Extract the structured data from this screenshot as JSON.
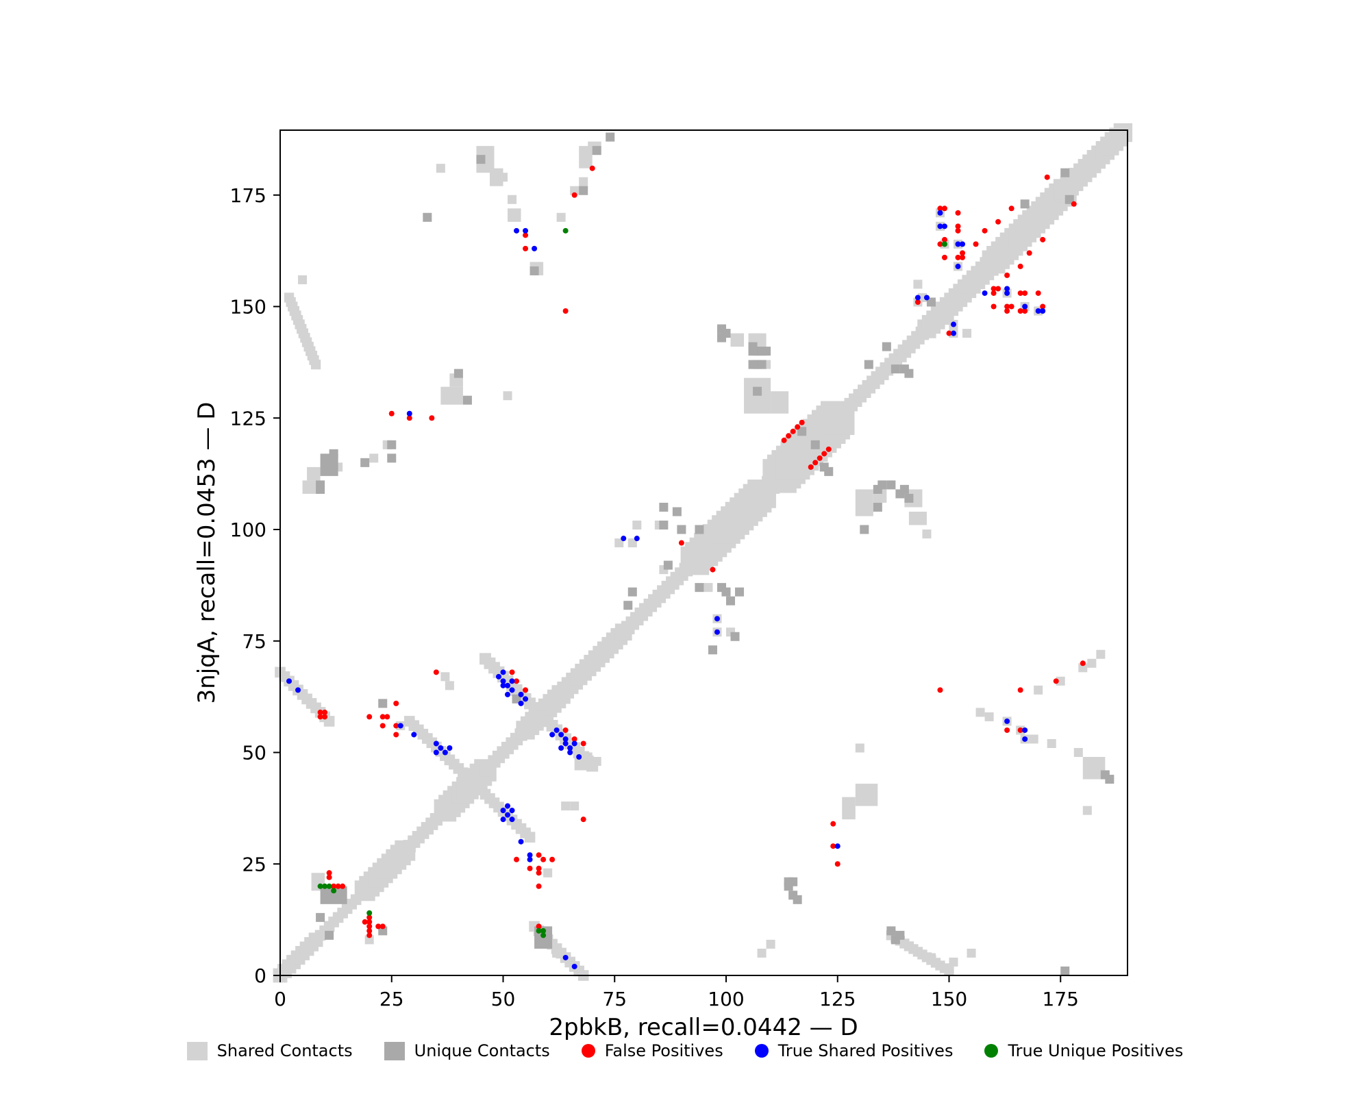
{
  "figure": {
    "xlabel": "2pbkB, recall=0.0442 — D",
    "ylabel": "3njqA, recall=0.0453 — D"
  },
  "legend": [
    {
      "label": "Shared Contacts",
      "marker": "square",
      "color": "#d3d3d3"
    },
    {
      "label": "Unique Contacts",
      "marker": "square",
      "color": "#a9a9a9"
    },
    {
      "label": "False Positives",
      "marker": "circle",
      "color": "#ff0000"
    },
    {
      "label": "True Shared Positives",
      "marker": "circle",
      "color": "#0000ff"
    },
    {
      "label": "True Unique Positives",
      "marker": "circle",
      "color": "#008000"
    }
  ],
  "chart_data": {
    "type": "heatmap",
    "title": "",
    "xlabel": "2pbkB, recall=0.0442 — D",
    "ylabel": "3njqA, recall=0.0453 — D",
    "xlim": [
      0,
      190
    ],
    "ylim": [
      0,
      189.5
    ],
    "x_ticks": [
      0,
      25,
      50,
      75,
      100,
      125,
      150,
      175
    ],
    "y_ticks": [
      0,
      25,
      50,
      75,
      100,
      125,
      150,
      175
    ],
    "grid": false,
    "legend_position": "below",
    "colors": {
      "shared": "#d3d3d3",
      "unique": "#a9a9a9",
      "false_positive": "#ff0000",
      "true_shared_positive": "#0000ff",
      "true_unique_positive": "#008000",
      "axis": "#000000",
      "background": "#ffffff"
    },
    "diagonal_segments": [
      {
        "from": 0,
        "to": 8,
        "hw": 1.6
      },
      {
        "from": 8,
        "to": 19,
        "hw": 1.2
      },
      {
        "from": 19,
        "to": 28,
        "hw": 2.3
      },
      {
        "from": 28,
        "to": 37,
        "hw": 1.4
      },
      {
        "from": 37,
        "to": 46,
        "hw": 2.5
      },
      {
        "from": 46,
        "to": 55,
        "hw": 1.4
      },
      {
        "from": 55,
        "to": 63,
        "hw": 2.1
      },
      {
        "from": 63,
        "to": 77,
        "hw": 1.9
      },
      {
        "from": 77,
        "to": 93,
        "hw": 1.5
      },
      {
        "from": 93,
        "to": 108,
        "hw": 3.2
      },
      {
        "from": 108,
        "to": 112,
        "hw": 2.0
      },
      {
        "from": 112,
        "to": 125,
        "hw": 3.8
      },
      {
        "from": 125,
        "to": 145,
        "hw": 1.5
      },
      {
        "from": 145,
        "to": 160,
        "hw": 2.1
      },
      {
        "from": 160,
        "to": 176,
        "hw": 2.6
      },
      {
        "from": 176,
        "to": 189,
        "hw": 2.1
      }
    ],
    "anti_diagonal_arcs": [
      {
        "from": [
          29,
          57
        ],
        "to": [
          56,
          31
        ],
        "hw": 1.2
      },
      {
        "from": [
          46,
          71
        ],
        "to": [
          70,
          47
        ],
        "hw": 1.3
      },
      {
        "from": [
          57,
          11
        ],
        "to": [
          68,
          0
        ],
        "hw": 1.2
      },
      {
        "from": [
          0,
          68
        ],
        "to": [
          11,
          57
        ],
        "hw": 1.2
      },
      {
        "from": [
          2,
          152
        ],
        "to": [
          8,
          137
        ],
        "hw": 1.1
      },
      {
        "from": [
          137,
          9
        ],
        "to": [
          150,
          1
        ],
        "hw": 1.1
      }
    ],
    "shared_blobs": [
      [
        44,
        180,
        4,
        6
      ],
      [
        47,
        177,
        3,
        4
      ],
      [
        49,
        178,
        2,
        2
      ],
      [
        51,
        173,
        2,
        2
      ],
      [
        51,
        169,
        3,
        3
      ],
      [
        56,
        157,
        3,
        3
      ],
      [
        67,
        181,
        3,
        5
      ],
      [
        69,
        184,
        3,
        3
      ],
      [
        67,
        176,
        2,
        3
      ],
      [
        36,
        128,
        5,
        4
      ],
      [
        38,
        132,
        3,
        3
      ],
      [
        101,
        141,
        3,
        3
      ],
      [
        105,
        139,
        4,
        5
      ],
      [
        104,
        126,
        6,
        8
      ],
      [
        110,
        126,
        4,
        5
      ],
      [
        5,
        108,
        4,
        3
      ],
      [
        6,
        111,
        3,
        3
      ],
      [
        12,
        113,
        2,
        2
      ],
      [
        129,
        103,
        4,
        6
      ],
      [
        133,
        106,
        3,
        3
      ],
      [
        140,
        105,
        4,
        4
      ],
      [
        141,
        101,
        4,
        3
      ],
      [
        144,
        98,
        2,
        2
      ],
      [
        126,
        35,
        3,
        5
      ],
      [
        129,
        38,
        5,
        5
      ],
      [
        180,
        44,
        5,
        5
      ],
      [
        7,
        19,
        3,
        4
      ],
      [
        66,
        46,
        4,
        4
      ]
    ],
    "shared_cells": [
      [
        66,
        176
      ],
      [
        24,
        119
      ],
      [
        21,
        116
      ],
      [
        36,
        181
      ],
      [
        5,
        156
      ],
      [
        51,
        130
      ],
      [
        109,
        137
      ],
      [
        63,
        170
      ],
      [
        143,
        151
      ],
      [
        144,
        152
      ],
      [
        143,
        155
      ],
      [
        154,
        144
      ],
      [
        151,
        146
      ],
      [
        151,
        144
      ],
      [
        148,
        171
      ],
      [
        148,
        168
      ],
      [
        152,
        164
      ],
      [
        152,
        159
      ],
      [
        163,
        153
      ],
      [
        167,
        150
      ],
      [
        170,
        149
      ],
      [
        149,
        164
      ],
      [
        76,
        97
      ],
      [
        79,
        97
      ],
      [
        80,
        101
      ],
      [
        85,
        101
      ],
      [
        86,
        91
      ],
      [
        96,
        87
      ],
      [
        98,
        80
      ],
      [
        98,
        77
      ],
      [
        101,
        77
      ],
      [
        157,
        59
      ],
      [
        159,
        58
      ],
      [
        163,
        57
      ],
      [
        166,
        55
      ],
      [
        167,
        53
      ],
      [
        169,
        53
      ],
      [
        173,
        52
      ],
      [
        179,
        50
      ],
      [
        181,
        37
      ],
      [
        180,
        69
      ],
      [
        182,
        70
      ],
      [
        184,
        72
      ],
      [
        175,
        66
      ],
      [
        170,
        64
      ],
      [
        62,
        5
      ],
      [
        20,
        8
      ],
      [
        27,
        56
      ],
      [
        37,
        67
      ],
      [
        38,
        65
      ],
      [
        60,
        23
      ],
      [
        64,
        38
      ],
      [
        66,
        38
      ],
      [
        71,
        48
      ],
      [
        130,
        51
      ],
      [
        155,
        5
      ],
      [
        151,
        3
      ],
      [
        146,
        4
      ],
      [
        108,
        5
      ],
      [
        110,
        7
      ]
    ],
    "unique_blobs": [
      [
        9,
        112,
        4,
        5
      ],
      [
        11,
        116,
        2,
        2
      ],
      [
        8,
        108,
        2,
        3
      ],
      [
        9,
        16,
        6,
        4
      ],
      [
        57,
        6,
        4,
        5
      ]
    ],
    "unique_cells": [
      [
        74,
        188
      ],
      [
        71,
        185
      ],
      [
        68,
        176
      ],
      [
        45,
        183
      ],
      [
        57,
        158
      ],
      [
        33,
        170
      ],
      [
        19,
        115
      ],
      [
        25,
        116
      ],
      [
        25,
        119
      ],
      [
        40,
        135
      ],
      [
        42,
        129
      ],
      [
        99,
        145
      ],
      [
        100,
        144
      ],
      [
        99,
        143
      ],
      [
        106,
        141
      ],
      [
        107,
        131
      ],
      [
        106,
        140
      ],
      [
        107,
        140
      ],
      [
        108,
        140
      ],
      [
        109,
        140
      ],
      [
        106,
        137
      ],
      [
        107,
        137
      ],
      [
        108,
        137
      ],
      [
        86,
        105
      ],
      [
        89,
        104
      ],
      [
        86,
        101
      ],
      [
        90,
        100
      ],
      [
        94,
        100
      ],
      [
        87,
        92
      ],
      [
        78,
        83
      ],
      [
        79,
        86
      ],
      [
        94,
        87
      ],
      [
        99,
        87
      ],
      [
        100,
        86
      ],
      [
        103,
        86
      ],
      [
        101,
        84
      ],
      [
        97,
        73
      ],
      [
        102,
        76
      ],
      [
        117,
        122
      ],
      [
        120,
        119
      ],
      [
        122,
        114
      ],
      [
        123,
        113
      ],
      [
        134,
        109
      ],
      [
        135,
        110
      ],
      [
        137,
        110
      ],
      [
        139,
        108
      ],
      [
        140,
        109
      ],
      [
        141,
        107
      ],
      [
        134,
        105
      ],
      [
        131,
        100
      ],
      [
        146,
        151
      ],
      [
        176,
        180
      ],
      [
        177,
        174
      ],
      [
        167,
        173
      ],
      [
        136,
        141
      ],
      [
        132,
        137
      ],
      [
        138,
        136
      ],
      [
        140,
        136
      ],
      [
        141,
        135
      ],
      [
        114,
        20
      ],
      [
        114,
        21
      ],
      [
        115,
        21
      ],
      [
        115,
        18
      ],
      [
        116,
        17
      ],
      [
        53,
        62
      ],
      [
        23,
        61
      ],
      [
        185,
        45
      ],
      [
        186,
        44
      ],
      [
        138,
        8
      ],
      [
        139,
        9
      ],
      [
        137,
        10
      ],
      [
        176,
        1
      ],
      [
        23,
        10
      ],
      [
        9,
        13
      ],
      [
        11,
        9
      ]
    ],
    "false_positives": [
      [
        55,
        166
      ],
      [
        55,
        163
      ],
      [
        64,
        149
      ],
      [
        25,
        126
      ],
      [
        29,
        125
      ],
      [
        34,
        125
      ],
      [
        70,
        181
      ],
      [
        66,
        175
      ],
      [
        148,
        172
      ],
      [
        149,
        172
      ],
      [
        152,
        171
      ],
      [
        164,
        172
      ],
      [
        161,
        169
      ],
      [
        152,
        168
      ],
      [
        152,
        167
      ],
      [
        158,
        167
      ],
      [
        149,
        165
      ],
      [
        156,
        164
      ],
      [
        148,
        164
      ],
      [
        153,
        162
      ],
      [
        149,
        161
      ],
      [
        152,
        161
      ],
      [
        153,
        161
      ],
      [
        171,
        165
      ],
      [
        168,
        162
      ],
      [
        166,
        159
      ],
      [
        163,
        157
      ],
      [
        160,
        154
      ],
      [
        161,
        154
      ],
      [
        160,
        153
      ],
      [
        166,
        153
      ],
      [
        167,
        153
      ],
      [
        170,
        153
      ],
      [
        160,
        150
      ],
      [
        163,
        150
      ],
      [
        164,
        150
      ],
      [
        171,
        150
      ],
      [
        163,
        149
      ],
      [
        166,
        149
      ],
      [
        167,
        149
      ],
      [
        150,
        144
      ],
      [
        143,
        151
      ],
      [
        172,
        179
      ],
      [
        178,
        173
      ],
      [
        90,
        97
      ],
      [
        97,
        91
      ],
      [
        113,
        120
      ],
      [
        114,
        121
      ],
      [
        115,
        122
      ],
      [
        116,
        123
      ],
      [
        117,
        124
      ],
      [
        119,
        114
      ],
      [
        120,
        115
      ],
      [
        121,
        116
      ],
      [
        122,
        117
      ],
      [
        123,
        118
      ],
      [
        35,
        68
      ],
      [
        26,
        61
      ],
      [
        148,
        64
      ],
      [
        166,
        64
      ],
      [
        174,
        66
      ],
      [
        180,
        70
      ],
      [
        9,
        59
      ],
      [
        10,
        59
      ],
      [
        9,
        58
      ],
      [
        10,
        58
      ],
      [
        20,
        58
      ],
      [
        23,
        58
      ],
      [
        24,
        58
      ],
      [
        23,
        56
      ],
      [
        26,
        56
      ],
      [
        26,
        54
      ],
      [
        12,
        20
      ],
      [
        13,
        20
      ],
      [
        14,
        20
      ],
      [
        11,
        23
      ],
      [
        11,
        22
      ],
      [
        20,
        13
      ],
      [
        19,
        12
      ],
      [
        20,
        12
      ],
      [
        20,
        11
      ],
      [
        22,
        11
      ],
      [
        23,
        11
      ],
      [
        20,
        10
      ],
      [
        20,
        9
      ],
      [
        58,
        11
      ],
      [
        53,
        26
      ],
      [
        58,
        27
      ],
      [
        59,
        26
      ],
      [
        61,
        26
      ],
      [
        56,
        24
      ],
      [
        58,
        24
      ],
      [
        58,
        23
      ],
      [
        58,
        20
      ],
      [
        52,
        68
      ],
      [
        53,
        66
      ],
      [
        55,
        64
      ],
      [
        64,
        55
      ],
      [
        66,
        53
      ],
      [
        68,
        52
      ],
      [
        68,
        35
      ],
      [
        124,
        34
      ],
      [
        124,
        29
      ],
      [
        125,
        25
      ],
      [
        163,
        55
      ],
      [
        166,
        55
      ]
    ],
    "true_shared_positives": [
      [
        53,
        167
      ],
      [
        55,
        167
      ],
      [
        57,
        163
      ],
      [
        29,
        126
      ],
      [
        148,
        171
      ],
      [
        148,
        168
      ],
      [
        149,
        168
      ],
      [
        152,
        164
      ],
      [
        153,
        164
      ],
      [
        152,
        159
      ],
      [
        163,
        154
      ],
      [
        163,
        153
      ],
      [
        158,
        153
      ],
      [
        167,
        150
      ],
      [
        170,
        149
      ],
      [
        171,
        149
      ],
      [
        151,
        146
      ],
      [
        151,
        144
      ],
      [
        143,
        152
      ],
      [
        145,
        152
      ],
      [
        77,
        98
      ],
      [
        80,
        98
      ],
      [
        98,
        80
      ],
      [
        98,
        77
      ],
      [
        2,
        66
      ],
      [
        4,
        64
      ],
      [
        35,
        52
      ],
      [
        36,
        51
      ],
      [
        38,
        51
      ],
      [
        35,
        50
      ],
      [
        37,
        50
      ],
      [
        30,
        54
      ],
      [
        27,
        56
      ],
      [
        50,
        37
      ],
      [
        51,
        38
      ],
      [
        51,
        36
      ],
      [
        50,
        35
      ],
      [
        52,
        35
      ],
      [
        52,
        37
      ],
      [
        54,
        30
      ],
      [
        56,
        27
      ],
      [
        56,
        26
      ],
      [
        50,
        68
      ],
      [
        49,
        67
      ],
      [
        50,
        66
      ],
      [
        52,
        66
      ],
      [
        50,
        65
      ],
      [
        51,
        65
      ],
      [
        51,
        63
      ],
      [
        52,
        64
      ],
      [
        54,
        63
      ],
      [
        55,
        62
      ],
      [
        54,
        61
      ],
      [
        62,
        55
      ],
      [
        61,
        54
      ],
      [
        63,
        54
      ],
      [
        64,
        53
      ],
      [
        64,
        52
      ],
      [
        63,
        51
      ],
      [
        65,
        51
      ],
      [
        65,
        50
      ],
      [
        67,
        49
      ],
      [
        66,
        52
      ],
      [
        64,
        4
      ],
      [
        66,
        2
      ],
      [
        125,
        29
      ],
      [
        163,
        57
      ],
      [
        167,
        55
      ],
      [
        167,
        53
      ]
    ],
    "true_unique_positives": [
      [
        64,
        167
      ],
      [
        149,
        164
      ],
      [
        9,
        20
      ],
      [
        10,
        20
      ],
      [
        11,
        20
      ],
      [
        12,
        19
      ],
      [
        20,
        14
      ],
      [
        58,
        10
      ],
      [
        59,
        10
      ],
      [
        59,
        9
      ]
    ]
  }
}
